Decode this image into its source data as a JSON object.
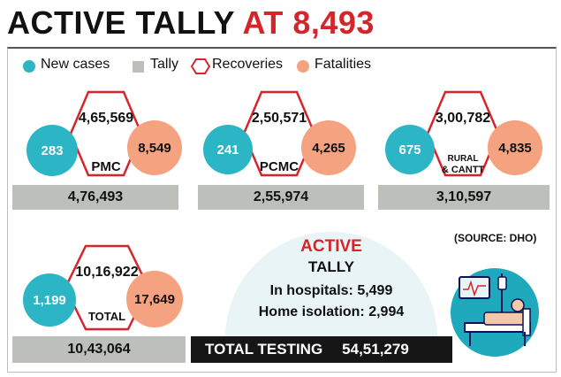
{
  "title": {
    "part1": "ACTIVE TALLY",
    "part2": "AT 8,493"
  },
  "legend": {
    "new_cases": "New cases",
    "tally": "Tally",
    "recoveries": "Recoveries",
    "fatalities": "Fatalities"
  },
  "colors": {
    "new_cases": "#2cb5c4",
    "tally": "#bdbfbb",
    "recoveries": "#d4252b",
    "fatalities": "#f4a27f",
    "title_accent": "#d4252b"
  },
  "regions": {
    "pmc": {
      "label": "PMC",
      "new_cases": "283",
      "recoveries": "4,65,569",
      "fatalities": "8,549",
      "tally": "4,76,493"
    },
    "pcmc": {
      "label": "PCMC",
      "new_cases": "241",
      "recoveries": "2,50,571",
      "fatalities": "4,265",
      "tally": "2,55,974"
    },
    "rural": {
      "label_line1": "RURAL",
      "label_line2": "& CANTT",
      "new_cases": "675",
      "recoveries": "3,00,782",
      "fatalities": "4,835",
      "tally": "3,10,597"
    },
    "total": {
      "label": "TOTAL",
      "new_cases": "1,199",
      "recoveries": "10,16,922",
      "fatalities": "17,649",
      "tally": "10,43,064"
    }
  },
  "source": "(SOURCE: DHO)",
  "active": {
    "heading": "ACTIVE",
    "subheading": "TALLY",
    "hospitals": "In hospitals: 5,499",
    "home_isolation": "Home isolation: 2,994"
  },
  "testing": {
    "label": "TOTAL TESTING",
    "value": "54,51,279"
  },
  "icons": {
    "illustration": "hospital-bed-patient-icon"
  }
}
